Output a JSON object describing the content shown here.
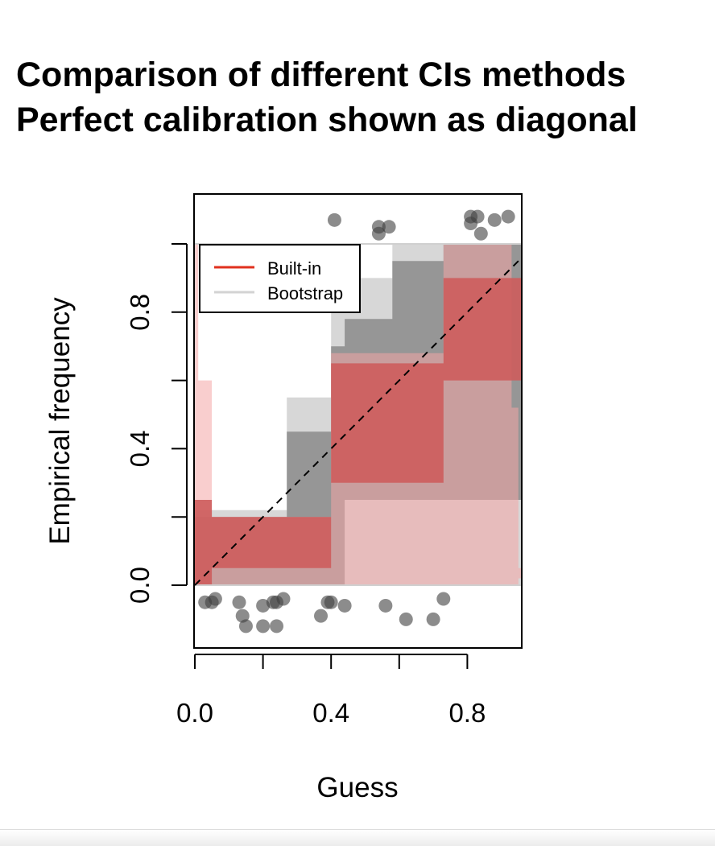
{
  "title_lines": [
    "Comparison of different CIs methods",
    "Perfect calibration shown as diagonal"
  ],
  "colors": {
    "builtin": "#cd5c5c",
    "builtin_light": "#f4a6a6",
    "bootstrap": "#808080",
    "bootstrap_light": "#d3d3d3",
    "points": "#404040"
  },
  "chart_data": {
    "type": "area",
    "title": "Comparison of different CIs methods\nPerfect calibration shown as diagonal",
    "xlabel": "Guess",
    "ylabel": "Empirical frequency",
    "xlim": [
      0,
      0.96
    ],
    "ylim": [
      -0.18,
      1.16
    ],
    "xticks": [
      0.0,
      0.2,
      0.4,
      0.6,
      0.8
    ],
    "xtick_labels": [
      "0.0",
      "",
      "0.4",
      "",
      "0.8"
    ],
    "yticks": [
      0.0,
      0.2,
      0.4,
      0.6,
      0.8,
      1.0
    ],
    "ytick_labels": [
      "0.0",
      "",
      "0.4",
      "",
      "0.8",
      ""
    ],
    "reference_lines": [
      0,
      1
    ],
    "diagonal": "perfect calibration (y = x), dashed",
    "legend": {
      "position": "top-left",
      "entries": [
        "Built-in",
        "Bootstrap"
      ]
    },
    "series": [
      {
        "name": "Bootstrap",
        "role": "band",
        "bands": [
          {
            "level": "outer",
            "x": [
              0.0,
              0.08,
              0.2,
              0.27,
              0.4,
              0.42,
              0.58,
              0.73
            ],
            "lower": [
              0.0,
              0.0,
              0.0,
              0.0,
              0.0,
              0.0,
              0.0,
              0.0
            ],
            "upper": [
              0.22,
              0.22,
              0.22,
              0.55,
              0.8,
              0.9,
              1.0,
              1.0
            ]
          },
          {
            "level": "inner",
            "x": [
              0.0,
              0.08,
              0.2,
              0.27,
              0.4,
              0.44,
              0.58,
              0.73
            ],
            "lower": [
              0.0,
              0.0,
              0.0,
              0.0,
              0.0,
              0.25,
              0.25,
              0.25
            ],
            "upper": [
              0.2,
              0.2,
              0.2,
              0.45,
              0.7,
              0.78,
              0.95,
              1.0
            ]
          }
        ]
      },
      {
        "name": "Built-in",
        "role": "band",
        "bands": [
          {
            "level": "outer",
            "x": [
              0.0,
              0.01,
              0.05,
              0.4,
              0.73,
              0.93,
              0.95
            ],
            "lower": [
              0.0,
              0.0,
              0.0,
              0.0,
              0.0,
              0.0,
              0.02
            ],
            "upper": [
              1.0,
              0.6,
              0.2,
              0.68,
              1.0,
              0.52,
              0.05
            ]
          },
          {
            "level": "inner",
            "x": [
              0.0,
              0.05,
              0.4,
              0.73,
              0.96
            ],
            "lower": [
              0.0,
              0.05,
              0.3,
              0.6,
              0.6
            ],
            "upper": [
              0.25,
              0.2,
              0.65,
              0.9,
              0.7
            ]
          }
        ]
      },
      {
        "name": "Outcomes (jittered)",
        "role": "points",
        "points": [
          {
            "x": 0.41,
            "y": 1.07
          },
          {
            "x": 0.54,
            "y": 1.05
          },
          {
            "x": 0.54,
            "y": 1.03
          },
          {
            "x": 0.57,
            "y": 1.05
          },
          {
            "x": 0.81,
            "y": 1.08
          },
          {
            "x": 0.83,
            "y": 1.08
          },
          {
            "x": 0.81,
            "y": 1.06
          },
          {
            "x": 0.84,
            "y": 1.03
          },
          {
            "x": 0.88,
            "y": 1.07
          },
          {
            "x": 0.92,
            "y": 1.08
          },
          {
            "x": 0.03,
            "y": -0.05
          },
          {
            "x": 0.05,
            "y": -0.05
          },
          {
            "x": 0.06,
            "y": -0.04
          },
          {
            "x": 0.13,
            "y": -0.05
          },
          {
            "x": 0.14,
            "y": -0.09
          },
          {
            "x": 0.15,
            "y": -0.12
          },
          {
            "x": 0.2,
            "y": -0.12
          },
          {
            "x": 0.2,
            "y": -0.06
          },
          {
            "x": 0.23,
            "y": -0.05
          },
          {
            "x": 0.24,
            "y": -0.05
          },
          {
            "x": 0.24,
            "y": -0.12
          },
          {
            "x": 0.26,
            "y": -0.04
          },
          {
            "x": 0.37,
            "y": -0.09
          },
          {
            "x": 0.39,
            "y": -0.05
          },
          {
            "x": 0.4,
            "y": -0.05
          },
          {
            "x": 0.44,
            "y": -0.06
          },
          {
            "x": 0.56,
            "y": -0.06
          },
          {
            "x": 0.62,
            "y": -0.1
          },
          {
            "x": 0.7,
            "y": -0.1
          },
          {
            "x": 0.73,
            "y": -0.04
          }
        ]
      }
    ]
  }
}
